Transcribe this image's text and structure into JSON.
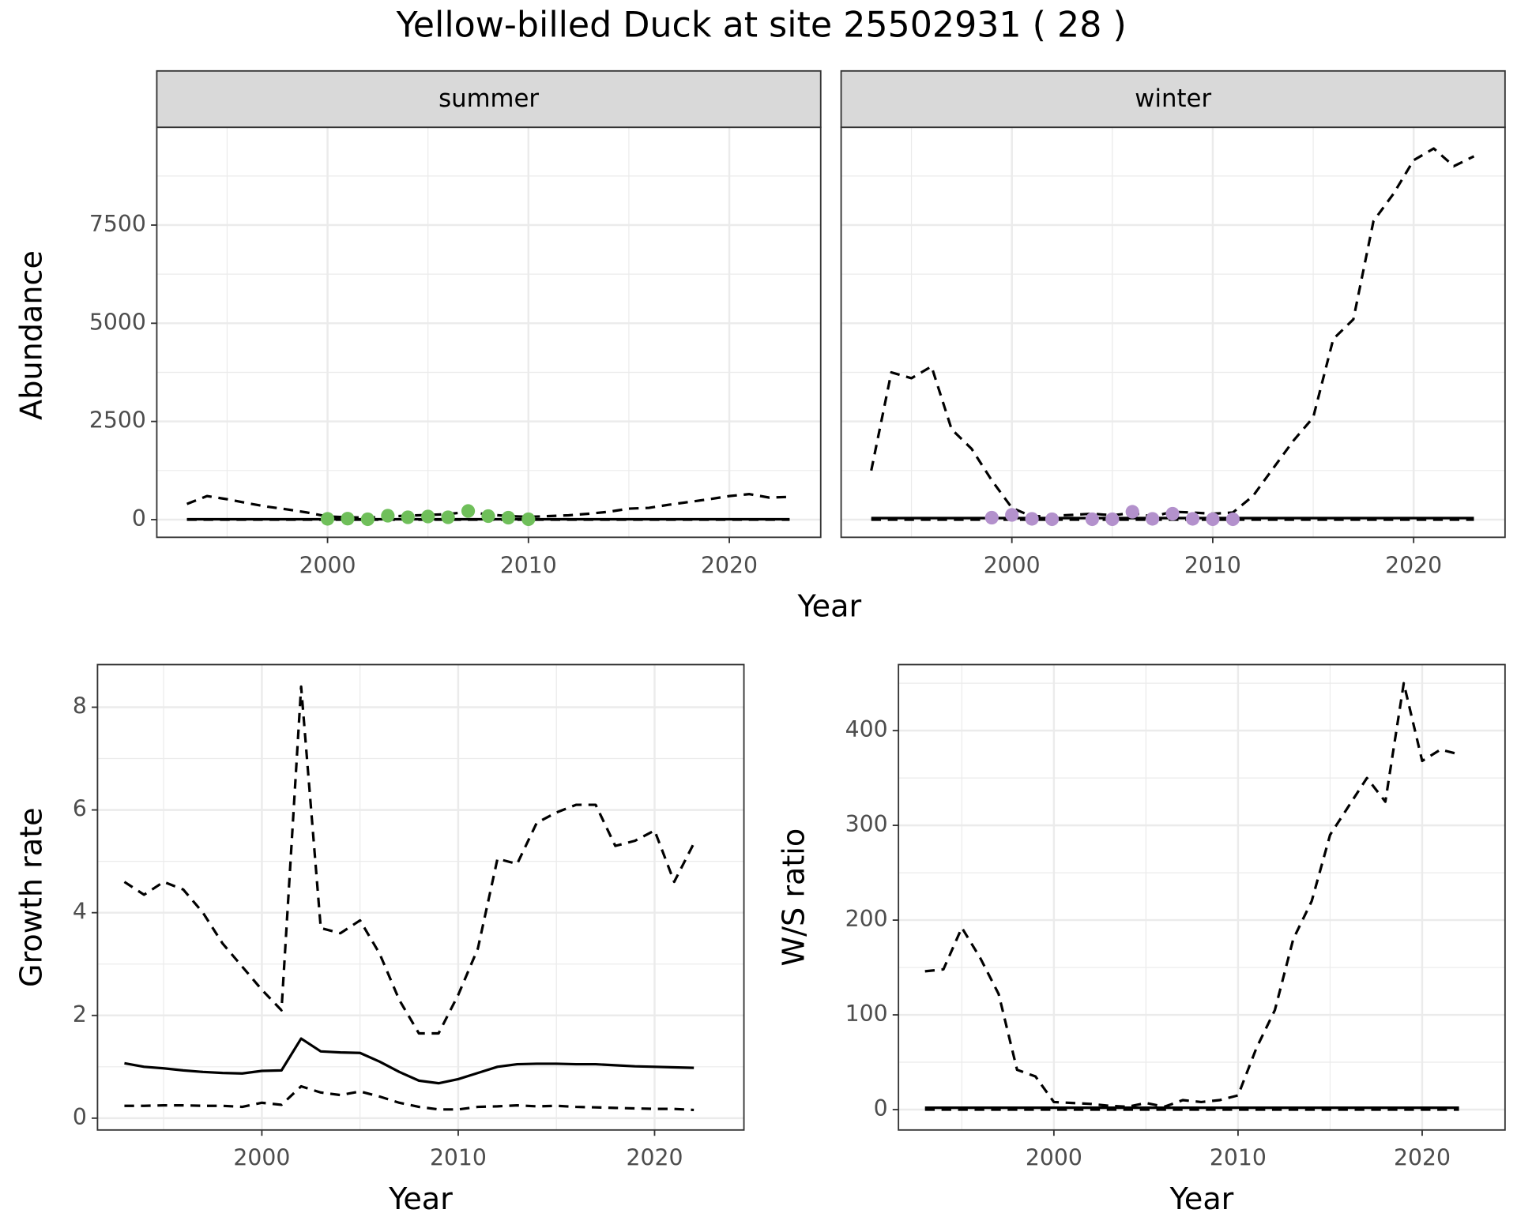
{
  "title": "Yellow-billed Duck at site 25502931 ( 28 )",
  "top_xlabel": "Year",
  "top_ylabel": "Abundance",
  "chart_data": [
    {
      "type": "line",
      "title": "summer",
      "xlim": [
        1991.5,
        2024.55
      ],
      "ylim": [
        -450,
        9990
      ],
      "xticks": [
        2000,
        2010,
        2020
      ],
      "yticks": [
        0,
        2500,
        5000,
        7500
      ],
      "grid": true,
      "ytick_labels": true,
      "x": [
        1993,
        1994,
        1995,
        1996,
        1997,
        1998,
        1999,
        2000,
        2001,
        2002,
        2003,
        2004,
        2005,
        2006,
        2007,
        2008,
        2009,
        2010,
        2011,
        2012,
        2013,
        2014,
        2015,
        2016,
        2017,
        2018,
        2019,
        2020,
        2021,
        2022,
        2023
      ],
      "series": [
        {
          "color": "#000000",
          "linestyle": "dashed",
          "values": [
            400,
            600,
            520,
            420,
            330,
            260,
            180,
            80,
            60,
            50,
            80,
            100,
            120,
            140,
            200,
            130,
            90,
            70,
            90,
            110,
            150,
            200,
            280,
            300,
            380,
            450,
            520,
            600,
            650,
            560,
            580
          ]
        },
        {
          "color": "#000000",
          "linestyle": "dashed",
          "values": [
            0,
            0,
            0,
            0,
            0,
            0,
            0,
            0,
            0,
            0,
            0,
            0,
            0,
            0,
            0,
            0,
            0,
            0,
            0,
            0,
            0,
            0,
            0,
            0,
            0,
            0,
            0,
            0,
            0,
            0,
            0
          ]
        },
        {
          "color": "#000000",
          "linestyle": "solid",
          "values": [
            10,
            10,
            10,
            10,
            10,
            10,
            10,
            10,
            10,
            10,
            10,
            10,
            10,
            10,
            10,
            10,
            10,
            10,
            10,
            10,
            10,
            10,
            10,
            10,
            10,
            10,
            10,
            10,
            10,
            10,
            10
          ]
        },
        {
          "color": "#6fbf5a",
          "mode": "markers",
          "x": [
            2000,
            2001,
            2002,
            2003,
            2004,
            2005,
            2006,
            2007,
            2008,
            2009,
            2010
          ],
          "values": [
            20,
            25,
            10,
            100,
            60,
            80,
            60,
            220,
            90,
            50,
            10
          ]
        }
      ]
    },
    {
      "type": "line",
      "title": "winter",
      "xlim": [
        1991.5,
        2024.55
      ],
      "ylim": [
        -450,
        9990
      ],
      "xticks": [
        2000,
        2010,
        2020
      ],
      "yticks": [
        0,
        2500,
        5000,
        7500
      ],
      "grid": true,
      "ytick_labels": false,
      "x": [
        1993,
        1994,
        1995,
        1996,
        1997,
        1998,
        1999,
        2000,
        2001,
        2002,
        2003,
        2004,
        2005,
        2006,
        2007,
        2008,
        2009,
        2010,
        2011,
        2012,
        2013,
        2014,
        2015,
        2016,
        2017,
        2018,
        2019,
        2020,
        2021,
        2022,
        2023
      ],
      "series": [
        {
          "color": "#000000",
          "linestyle": "dashed",
          "values": [
            1250,
            3750,
            3600,
            3900,
            2300,
            1800,
            1000,
            300,
            80,
            100,
            120,
            150,
            110,
            170,
            80,
            200,
            180,
            150,
            180,
            600,
            1300,
            2000,
            2600,
            4600,
            5100,
            7600,
            8300,
            9150,
            9450,
            9000,
            9250
          ]
        },
        {
          "color": "#000000",
          "linestyle": "dashed",
          "values": [
            0,
            0,
            0,
            0,
            0,
            0,
            0,
            0,
            0,
            0,
            0,
            0,
            0,
            0,
            0,
            0,
            0,
            0,
            0,
            0,
            0,
            0,
            0,
            0,
            0,
            0,
            0,
            0,
            0,
            0,
            0
          ]
        },
        {
          "color": "#000000",
          "linestyle": "solid",
          "values": [
            40,
            40,
            40,
            40,
            40,
            40,
            40,
            40,
            40,
            40,
            40,
            40,
            40,
            40,
            40,
            40,
            40,
            40,
            40,
            40,
            40,
            40,
            40,
            40,
            40,
            40,
            40,
            40,
            40,
            40,
            40
          ]
        },
        {
          "color": "#b391cc",
          "mode": "markers",
          "x": [
            1999,
            2000,
            2001,
            2002,
            2004,
            2005,
            2006,
            2007,
            2008,
            2009,
            2010,
            2011
          ],
          "values": [
            50,
            120,
            20,
            10,
            10,
            10,
            200,
            20,
            150,
            20,
            10,
            10
          ]
        }
      ]
    },
    {
      "type": "line",
      "xlabel": "Year",
      "ylabel": "Growth rate",
      "xlim": [
        1991.63,
        2024.55
      ],
      "ylim": [
        -0.23,
        8.83
      ],
      "xticks": [
        2000,
        2010,
        2020
      ],
      "yticks": [
        0,
        2,
        4,
        6,
        8
      ],
      "grid": true,
      "ytick_labels": true,
      "x": [
        1993,
        1994,
        1995,
        1996,
        1997,
        1998,
        1999,
        2000,
        2001,
        2002,
        2003,
        2004,
        2005,
        2006,
        2007,
        2008,
        2009,
        2010,
        2011,
        2012,
        2013,
        2014,
        2015,
        2016,
        2017,
        2018,
        2019,
        2020,
        2021,
        2022
      ],
      "series": [
        {
          "color": "#000000",
          "linestyle": "dashed",
          "values": [
            4.6,
            4.35,
            4.6,
            4.45,
            4.0,
            3.4,
            2.95,
            2.5,
            2.1,
            8.4,
            3.7,
            3.6,
            3.85,
            3.2,
            2.3,
            1.65,
            1.65,
            2.4,
            3.3,
            5.05,
            4.95,
            5.75,
            5.95,
            6.1,
            6.1,
            5.3,
            5.4,
            5.6,
            4.6,
            5.35
          ]
        },
        {
          "color": "#000000",
          "linestyle": "solid",
          "values": [
            1.07,
            1.0,
            0.97,
            0.93,
            0.9,
            0.88,
            0.87,
            0.92,
            0.93,
            1.55,
            1.3,
            1.28,
            1.27,
            1.1,
            0.9,
            0.73,
            0.68,
            0.76,
            0.88,
            1.0,
            1.05,
            1.06,
            1.06,
            1.05,
            1.05,
            1.03,
            1.01,
            1.0,
            0.99,
            0.98
          ]
        },
        {
          "color": "#000000",
          "linestyle": "dashed",
          "values": [
            0.24,
            0.24,
            0.25,
            0.25,
            0.24,
            0.24,
            0.22,
            0.3,
            0.26,
            0.62,
            0.5,
            0.45,
            0.52,
            0.42,
            0.3,
            0.22,
            0.17,
            0.17,
            0.22,
            0.23,
            0.25,
            0.23,
            0.24,
            0.22,
            0.21,
            0.2,
            0.19,
            0.18,
            0.18,
            0.16
          ]
        }
      ]
    },
    {
      "type": "line",
      "xlabel": "Year",
      "ylabel": "W/S ratio",
      "xlim": [
        1991.56,
        2024.5
      ],
      "ylim": [
        -21.5,
        469.7
      ],
      "xticks": [
        2000,
        2010,
        2020
      ],
      "yticks": [
        0,
        100,
        200,
        300,
        400
      ],
      "grid": true,
      "ytick_labels": true,
      "x": [
        1993,
        1994,
        1995,
        1996,
        1997,
        1998,
        1999,
        2000,
        2001,
        2002,
        2003,
        2004,
        2005,
        2006,
        2007,
        2008,
        2009,
        2010,
        2011,
        2012,
        2013,
        2014,
        2015,
        2016,
        2017,
        2018,
        2019,
        2020,
        2021,
        2022
      ],
      "series": [
        {
          "color": "#000000",
          "linestyle": "dashed",
          "values": [
            146,
            148,
            192,
            160,
            122,
            42,
            35,
            8,
            7,
            6,
            4,
            3,
            7,
            3,
            10,
            8,
            10,
            15,
            65,
            105,
            180,
            220,
            290,
            320,
            350,
            325,
            450,
            368,
            380,
            375
          ]
        },
        {
          "color": "#000000",
          "linestyle": "dashed",
          "values": [
            0,
            0,
            0,
            0,
            0,
            0,
            0,
            0,
            0,
            0,
            0,
            0,
            0,
            0,
            0,
            0,
            0,
            0,
            0,
            0,
            0,
            0,
            0,
            0,
            0,
            0,
            0,
            0,
            0,
            0
          ]
        },
        {
          "color": "#000000",
          "linestyle": "solid",
          "values": [
            2,
            2,
            2,
            2,
            2,
            2,
            2,
            2,
            2,
            2,
            2,
            2,
            2,
            2,
            2,
            2,
            2,
            2,
            2,
            2,
            2,
            2,
            2,
            2,
            2,
            2,
            2,
            2,
            2,
            2
          ]
        }
      ]
    }
  ]
}
